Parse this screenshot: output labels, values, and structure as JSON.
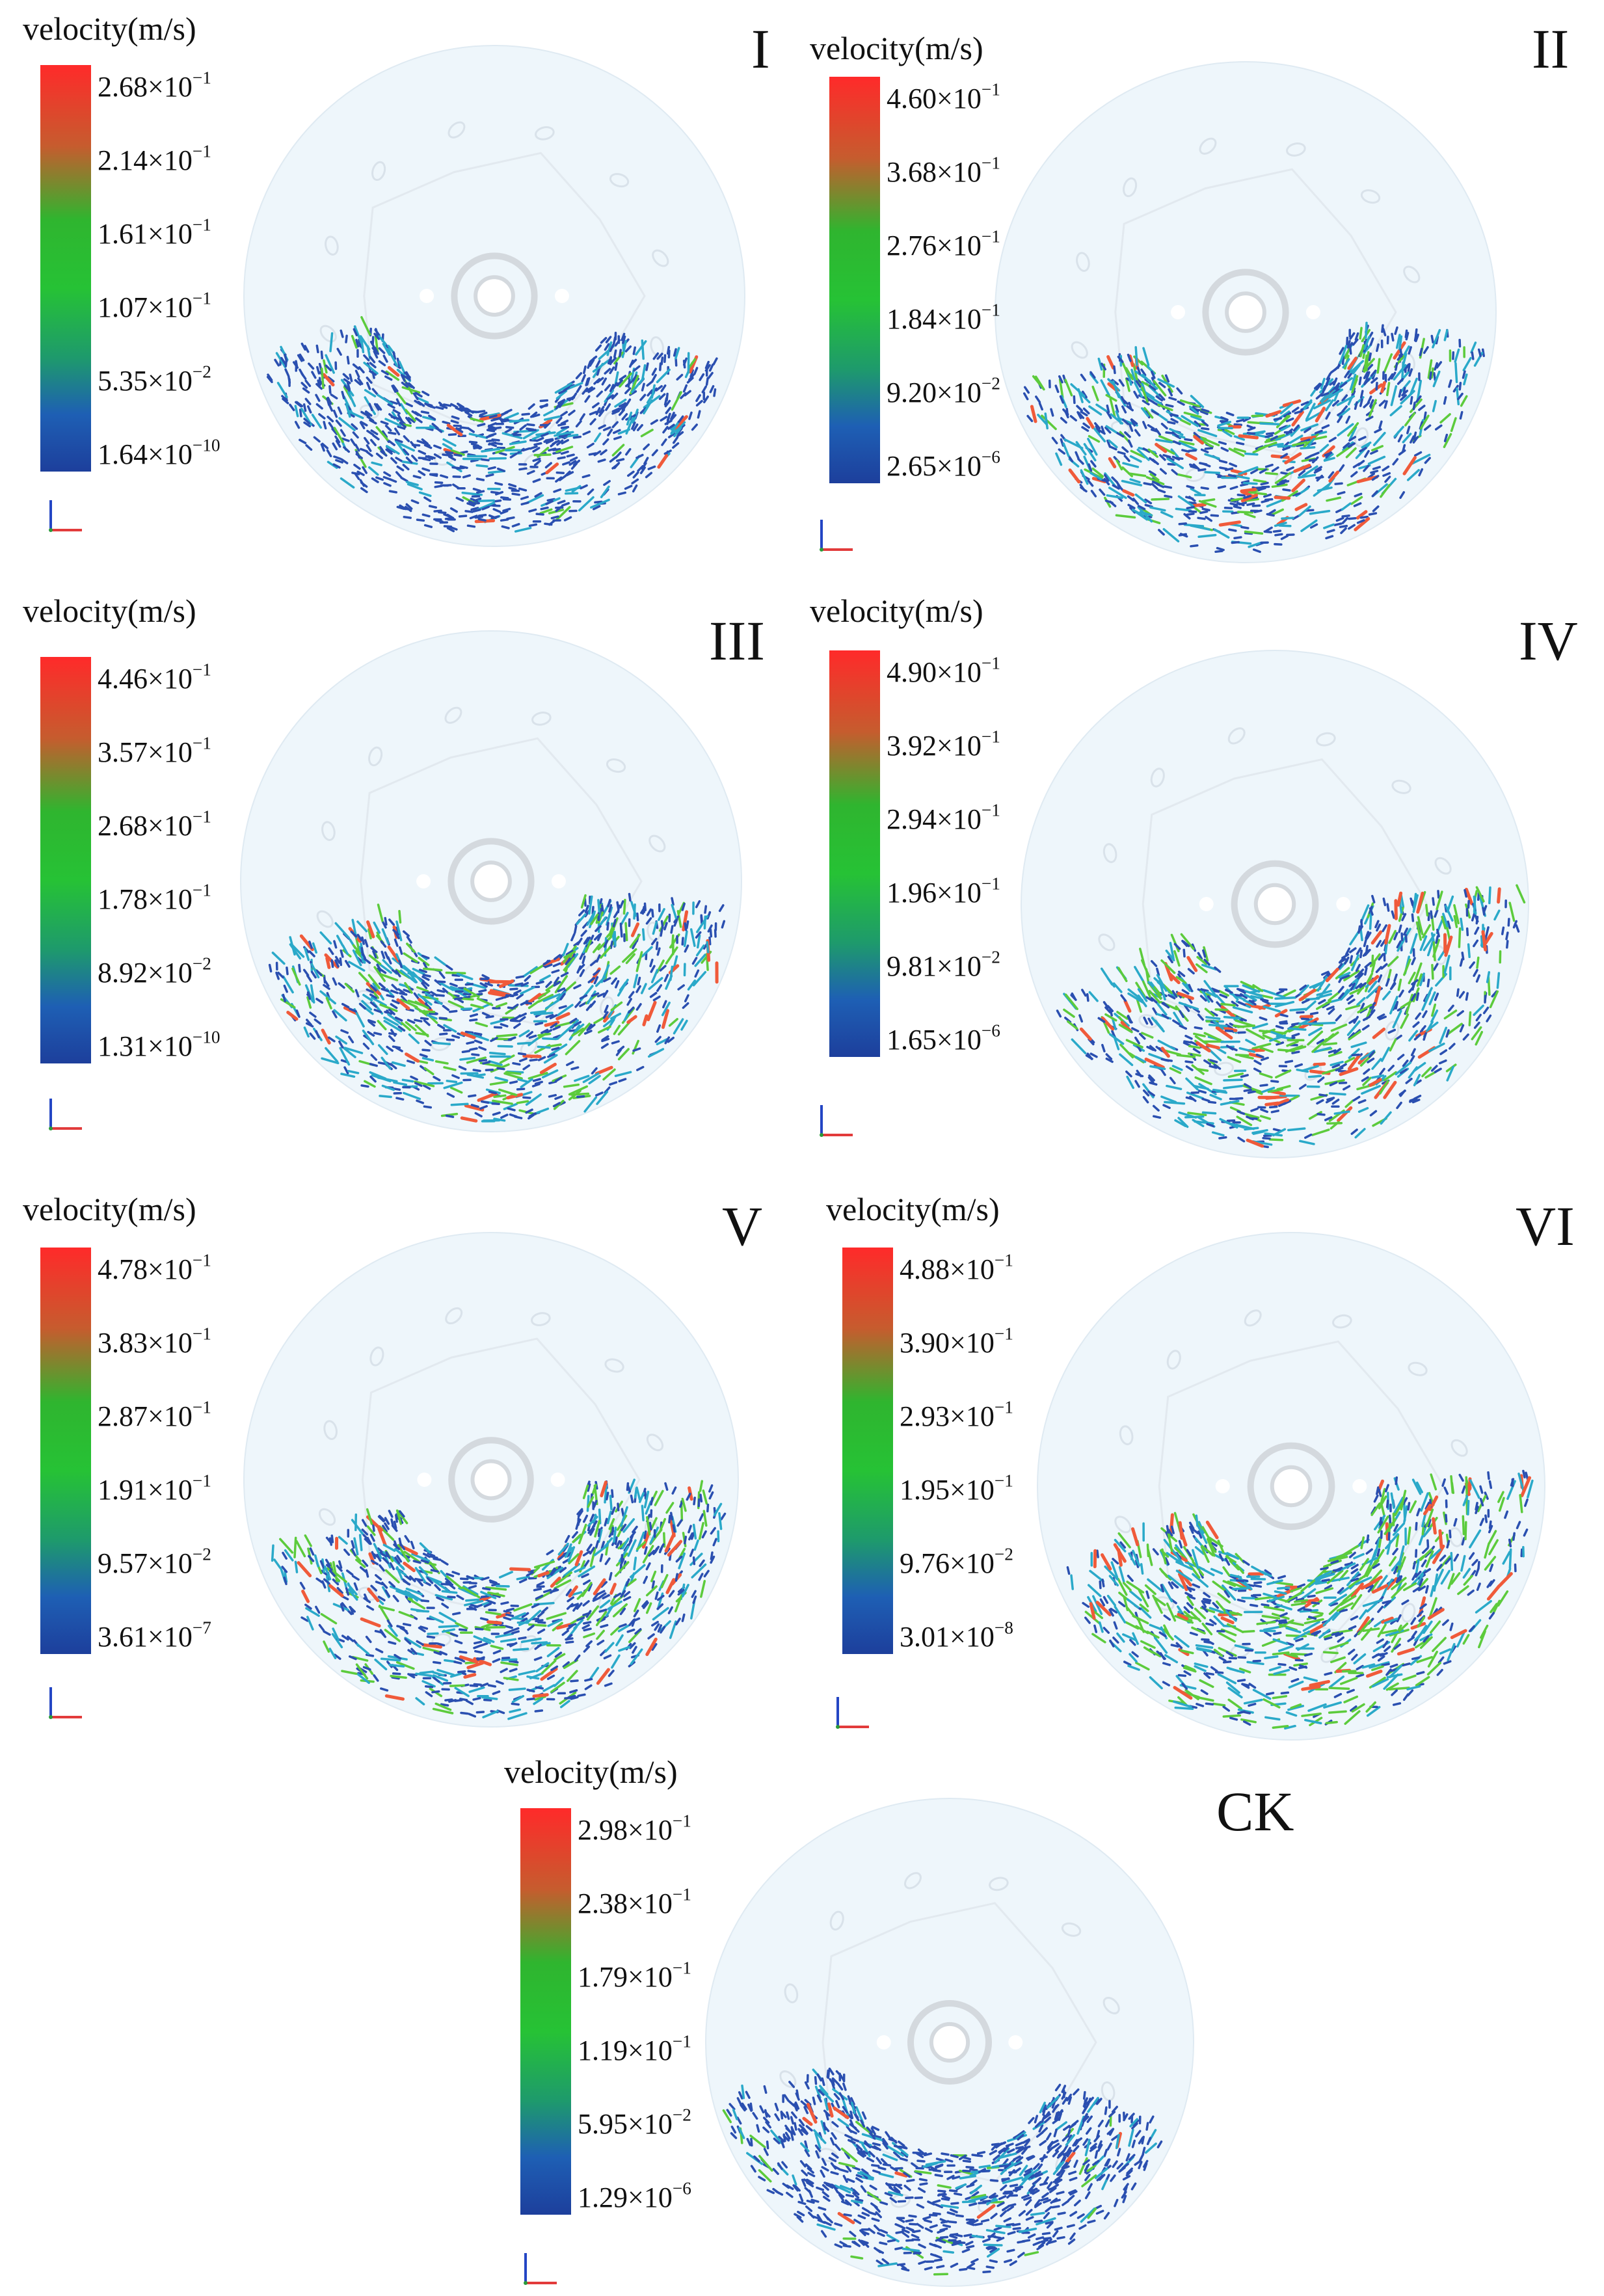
{
  "figure": {
    "panels": [
      {
        "id": "I",
        "unit_label": "velocity(m/s)",
        "ticks": [
          {
            "m": "2.68×10",
            "e": "−1"
          },
          {
            "m": "2.14×10",
            "e": "−1"
          },
          {
            "m": "1.61×10",
            "e": "−1"
          },
          {
            "m": "1.07×10",
            "e": "−1"
          },
          {
            "m": "5.35×10",
            "e": "−2"
          },
          {
            "m": "1.64×10",
            "e": "−10"
          }
        ]
      },
      {
        "id": "II",
        "unit_label": "velocity(m/s)",
        "ticks": [
          {
            "m": "4.60×10",
            "e": "−1"
          },
          {
            "m": "3.68×10",
            "e": "−1"
          },
          {
            "m": "2.76×10",
            "e": "−1"
          },
          {
            "m": "1.84×10",
            "e": "−1"
          },
          {
            "m": "9.20×10",
            "e": "−2"
          },
          {
            "m": "2.65×10",
            "e": "−6"
          }
        ]
      },
      {
        "id": "III",
        "unit_label": "velocity(m/s)",
        "ticks": [
          {
            "m": "4.46×10",
            "e": "−1"
          },
          {
            "m": "3.57×10",
            "e": "−1"
          },
          {
            "m": "2.68×10",
            "e": "−1"
          },
          {
            "m": "1.78×10",
            "e": "−1"
          },
          {
            "m": "8.92×10",
            "e": "−2"
          },
          {
            "m": "1.31×10",
            "e": "−10"
          }
        ]
      },
      {
        "id": "IV",
        "unit_label": "velocity(m/s)",
        "ticks": [
          {
            "m": "4.90×10",
            "e": "−1"
          },
          {
            "m": "3.92×10",
            "e": "−1"
          },
          {
            "m": "2.94×10",
            "e": "−1"
          },
          {
            "m": "1.96×10",
            "e": "−1"
          },
          {
            "m": "9.81×10",
            "e": "−2"
          },
          {
            "m": "1.65×10",
            "e": "−6"
          }
        ]
      },
      {
        "id": "V",
        "unit_label": "velocity(m/s)",
        "ticks": [
          {
            "m": "4.78×10",
            "e": "−1"
          },
          {
            "m": "3.83×10",
            "e": "−1"
          },
          {
            "m": "2.87×10",
            "e": "−1"
          },
          {
            "m": "1.91×10",
            "e": "−1"
          },
          {
            "m": "9.57×10",
            "e": "−2"
          },
          {
            "m": "3.61×10",
            "e": "−7"
          }
        ]
      },
      {
        "id": "VI",
        "unit_label": "velocity(m/s)",
        "ticks": [
          {
            "m": "4.88×10",
            "e": "−1"
          },
          {
            "m": "3.90×10",
            "e": "−1"
          },
          {
            "m": "2.93×10",
            "e": "−1"
          },
          {
            "m": "1.95×10",
            "e": "−1"
          },
          {
            "m": "9.76×10",
            "e": "−2"
          },
          {
            "m": "3.01×10",
            "e": "−8"
          }
        ]
      },
      {
        "id": "CK",
        "unit_label": "velocity(m/s)",
        "ticks": [
          {
            "m": "2.98×10",
            "e": "−1"
          },
          {
            "m": "2.38×10",
            "e": "−1"
          },
          {
            "m": "1.79×10",
            "e": "−1"
          },
          {
            "m": "1.19×10",
            "e": "−1"
          },
          {
            "m": "5.95×10",
            "e": "−2"
          },
          {
            "m": "1.29×10",
            "e": "−6"
          }
        ]
      }
    ],
    "colors": {
      "disc_fill": "#eef6fb",
      "disc_stroke": "#dfeaf2",
      "hub": "#d4d9de",
      "particle_base": "#2a4fb0",
      "particle_mid": "#2aa9c9",
      "particle_fast": "#5ccb3c",
      "particle_peak": "#f05a3a"
    }
  }
}
